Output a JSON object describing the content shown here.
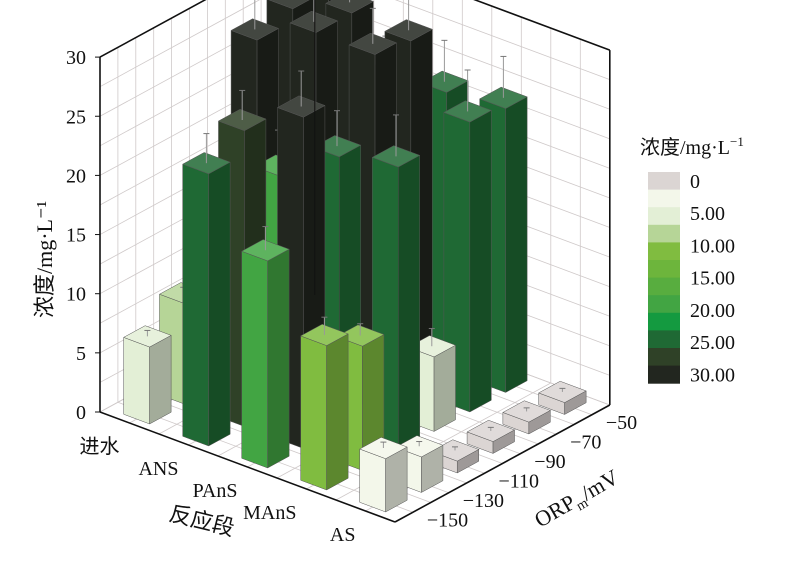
{
  "chart_data": {
    "type": "bar3d",
    "zlabel": "浓度/mg·L⁻¹",
    "xlabel": "反应段",
    "ylabel_main": "ORP",
    "ylabel_sub": "m",
    "ylabel_unit": "/mV",
    "stages": [
      "进水",
      "ANS",
      "PAnS",
      "MAnS",
      "AS"
    ],
    "orp": [
      "−150",
      "−130",
      "−110",
      "−90",
      "−70",
      "−50"
    ],
    "zticks": [
      "0",
      "5",
      "10",
      "15",
      "20",
      "25",
      "30"
    ],
    "zlim": [
      0,
      30
    ],
    "values": [
      [
        6.5,
        8.5,
        9.5,
        27.5,
        28.5,
        29.5
      ],
      [
        23,
        25,
        19.5,
        30,
        30,
        22.5
      ],
      [
        17.5,
        28,
        23,
        30,
        29.5,
        23.5
      ],
      [
        12.2,
        10.5,
        24,
        6.3,
        24.5,
        24
      ],
      [
        4.5,
        3,
        1,
        1,
        1,
        1
      ]
    ],
    "errors": [
      [
        0.5,
        0.5,
        0.5,
        4,
        4,
        4
      ],
      [
        2.5,
        2.5,
        3,
        3.5,
        3.5,
        3
      ],
      [
        2,
        3,
        3,
        3,
        3,
        3.5
      ],
      [
        1.5,
        1,
        3.5,
        1.5,
        3.5,
        3.5
      ],
      [
        0.5,
        0.4,
        0.3,
        0.3,
        0.3,
        0.3
      ]
    ],
    "colorbar": {
      "title": "浓度/mg·L",
      "title_sup": "−1",
      "labels": [
        "0",
        "5.00",
        "10.00",
        "15.00",
        "20.00",
        "25.00",
        "30.00"
      ],
      "label_values": [
        0,
        5,
        10,
        15,
        20,
        25,
        30
      ],
      "colors": [
        "#dbd5d3",
        "#f3f7ea",
        "#e3efd6",
        "#b6d597",
        "#80bc40",
        "#6db53c",
        "#58ad3f",
        "#42a543",
        "#149a40",
        "#1f6934",
        "#2f4127",
        "#22261f"
      ]
    },
    "grid": true
  }
}
